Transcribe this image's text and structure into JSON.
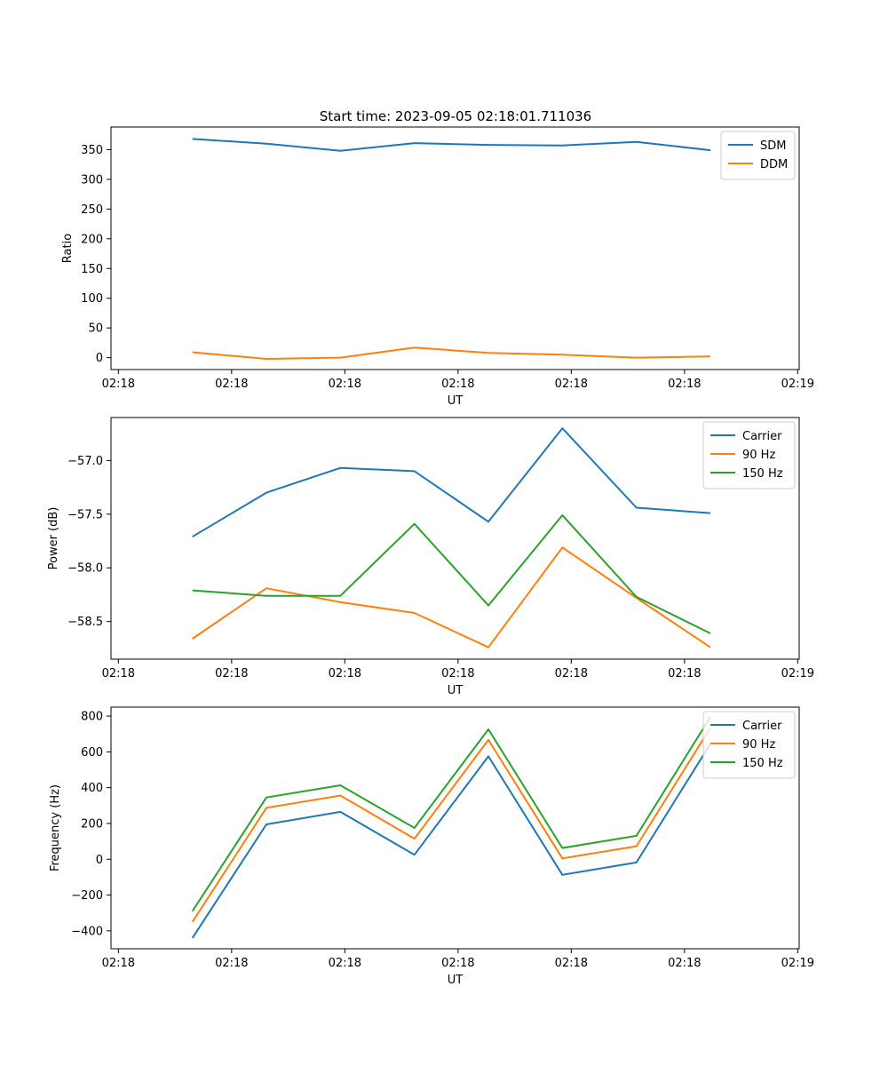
{
  "figure_title": "Start time: 2023-09-05 02:18:01.711036",
  "colors": {
    "blue": "#1f77b4",
    "orange": "#ff7f0e",
    "green": "#2ca02c"
  },
  "chart_data": [
    {
      "type": "line",
      "title": "Start time: 2023-09-05 02:18:01.711036",
      "xlabel": "UT",
      "ylabel": "Ratio",
      "x": [
        1,
        2,
        3,
        4,
        5,
        6,
        7,
        8
      ],
      "xlim": [
        -0.1,
        9.2
      ],
      "xticks": [
        0,
        1.53,
        3.06,
        4.59,
        6.12,
        7.65,
        9.18
      ],
      "xtick_labels": [
        "02:18",
        "02:18",
        "02:18",
        "02:18",
        "02:18",
        "02:18",
        "02:19"
      ],
      "ylim": [
        -20,
        388
      ],
      "yticks": [
        0,
        50,
        100,
        150,
        200,
        250,
        300,
        350
      ],
      "ytick_labels": [
        "0",
        "50",
        "100",
        "150",
        "200",
        "250",
        "300",
        "350"
      ],
      "legend": "top-right",
      "series": [
        {
          "name": "SDM",
          "color": "#1f77b4",
          "values": [
            368,
            360,
            348,
            361,
            358,
            357,
            363,
            349
          ]
        },
        {
          "name": "DDM",
          "color": "#ff7f0e",
          "values": [
            9,
            -2,
            0,
            17,
            8,
            5,
            0,
            2
          ]
        }
      ]
    },
    {
      "type": "line",
      "xlabel": "UT",
      "ylabel": "Power (dB)",
      "x": [
        1,
        2,
        3,
        4,
        5,
        6,
        7,
        8
      ],
      "xlim": [
        -0.1,
        9.2
      ],
      "xticks": [
        0,
        1.53,
        3.06,
        4.59,
        6.12,
        7.65,
        9.18
      ],
      "xtick_labels": [
        "02:18",
        "02:18",
        "02:18",
        "02:18",
        "02:18",
        "02:18",
        "02:19"
      ],
      "ylim": [
        -58.85,
        -56.6
      ],
      "yticks": [
        -58.5,
        -58.0,
        -57.5,
        -57.0
      ],
      "ytick_labels": [
        "−58.5",
        "−58.0",
        "−57.5",
        "−57.0"
      ],
      "legend": "top-right",
      "series": [
        {
          "name": "Carrier",
          "color": "#1f77b4",
          "values": [
            -57.71,
            -57.3,
            -57.07,
            -57.1,
            -57.57,
            -56.7,
            -57.44,
            -57.49
          ]
        },
        {
          "name": "90 Hz",
          "color": "#ff7f0e",
          "values": [
            -58.66,
            -58.19,
            -58.32,
            -58.42,
            -58.74,
            -57.81,
            -58.28,
            -58.74
          ]
        },
        {
          "name": "150 Hz",
          "color": "#2ca02c",
          "values": [
            -58.21,
            -58.26,
            -58.26,
            -57.59,
            -58.35,
            -57.51,
            -58.27,
            -58.61
          ]
        }
      ]
    },
    {
      "type": "line",
      "xlabel": "UT",
      "ylabel": "Frequency (Hz)",
      "x": [
        1,
        2,
        3,
        4,
        5,
        6,
        7,
        8
      ],
      "xlim": [
        -0.1,
        9.2
      ],
      "xticks": [
        0,
        1.53,
        3.06,
        4.59,
        6.12,
        7.65,
        9.18
      ],
      "xtick_labels": [
        "02:18",
        "02:18",
        "02:18",
        "02:18",
        "02:18",
        "02:18",
        "02:19"
      ],
      "ylim": [
        -500,
        850
      ],
      "yticks": [
        -400,
        -200,
        0,
        200,
        400,
        600,
        800
      ],
      "ytick_labels": [
        "−400",
        "−200",
        "0",
        "200",
        "400",
        "600",
        "800"
      ],
      "legend": "top-right",
      "series": [
        {
          "name": "Carrier",
          "color": "#1f77b4",
          "values": [
            -440,
            195,
            265,
            25,
            575,
            -87,
            -18,
            645
          ]
        },
        {
          "name": "90 Hz",
          "color": "#ff7f0e",
          "values": [
            -350,
            287,
            356,
            115,
            667,
            5,
            73,
            735
          ]
        },
        {
          "name": "150 Hz",
          "color": "#2ca02c",
          "values": [
            -290,
            345,
            413,
            175,
            726,
            63,
            131,
            795
          ]
        }
      ]
    }
  ]
}
